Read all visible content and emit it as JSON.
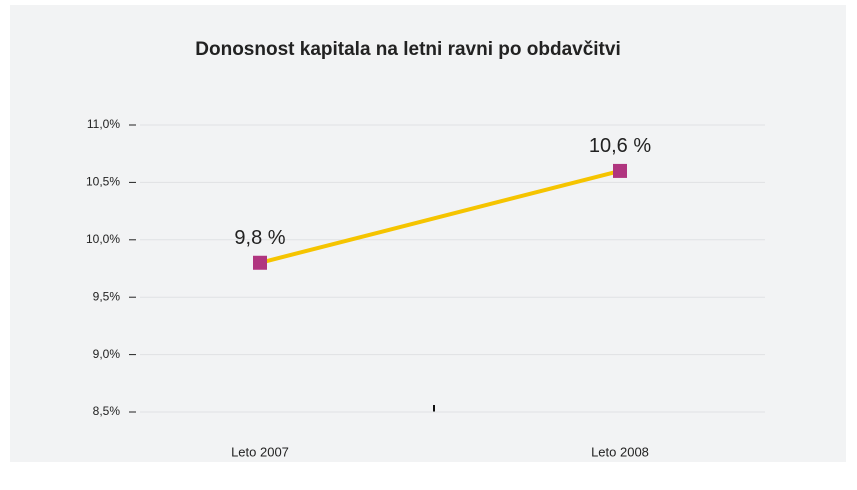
{
  "chart_data": {
    "type": "line",
    "title": "Donosnost kapitala na letni ravni po obdavčitvi",
    "categories": [
      "Leto 2007",
      "Leto 2008"
    ],
    "series": [
      {
        "name": "Donosnost kapitala",
        "color": "#f5c400",
        "marker_color": "#b0357f",
        "values": [
          9.8,
          10.6
        ],
        "value_labels": [
          "9,8 %",
          "10,6 %"
        ]
      }
    ],
    "ylim": [
      8.5,
      11.0
    ],
    "yticks": [
      {
        "value": 8.5,
        "label": "8,5%"
      },
      {
        "value": 9.0,
        "label": "9,0%"
      },
      {
        "value": 9.5,
        "label": "9,5%"
      },
      {
        "value": 10.0,
        "label": "10,0%"
      },
      {
        "value": 10.5,
        "label": "10,5%"
      },
      {
        "value": 11.0,
        "label": "11,0%"
      }
    ],
    "grid": true
  }
}
